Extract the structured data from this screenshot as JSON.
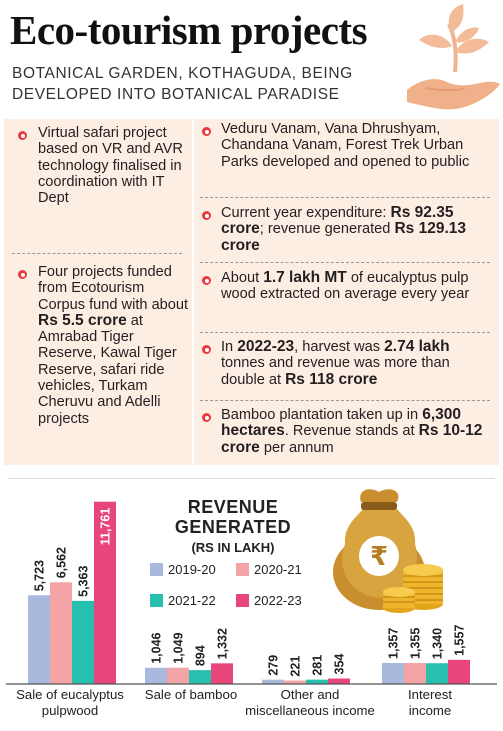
{
  "header": {
    "title": "Eco-tourism projects",
    "subtitle": "BOTANICAL GARDEN, KOTHAGUDA, BEING DEVELOPED INTO BOTANICAL PARADISE"
  },
  "left_points": [
    {
      "text": "Virtual safari project based on VR and AVR technology finalised in coordination with IT Dept"
    },
    {
      "pre": "Four projects funded from Ecotourism Corpus fund with about ",
      "b1": "Rs 5.5 crore",
      "post": " at Amrabad Tiger Reserve, Kawal Tiger Reserve, safari ride vehicles, Turkam Cheruvu and Adelli projects"
    }
  ],
  "right_points": [
    {
      "text": "Veduru Vanam, Vana Dhrushyam, Chandana Vanam, Forest Trek Urban Parks developed and opened to public"
    },
    {
      "pre": "Current year expenditure: ",
      "b1": "Rs 92.35 crore",
      "mid": "; revenue generated ",
      "b2": "Rs 129.13 crore"
    },
    {
      "pre": "About ",
      "b1": "1.7 lakh MT",
      "mid": " of eucalyptus pulp wood extracted on average every year"
    },
    {
      "pre": "In ",
      "b1": "2022-23",
      "mid": ", harvest was ",
      "b2": "2.74 lakh",
      "mid2": " tonnes and revenue was more than double at ",
      "b3": "Rs 118 crore"
    },
    {
      "pre": "Bamboo plantation taken up in ",
      "b1": "6,300 hectares",
      "mid": ". Revenue stands at ",
      "b2": "Rs 10-12 crore",
      "post": " per annum"
    }
  ],
  "chart_data": {
    "type": "bar",
    "title": "REVENUE GENERATED",
    "unit": "(RS IN LAKH)",
    "categories": [
      "Sale of eucalyptus pulpwood",
      "Sale of bamboo",
      "Other and miscellaneous income",
      "Interest income"
    ],
    "series": [
      {
        "name": "2019-20",
        "color": "#a9b9de",
        "values": [
          5723,
          1046,
          279,
          1357
        ]
      },
      {
        "name": "2020-21",
        "color": "#f4a3a6",
        "values": [
          6562,
          1049,
          221,
          1355
        ]
      },
      {
        "name": "2021-22",
        "color": "#27bfad",
        "values": [
          5363,
          894,
          281,
          1340
        ]
      },
      {
        "name": "2022-23",
        "color": "#e8457a",
        "values": [
          11761,
          1332,
          354,
          1557
        ]
      }
    ],
    "labels": [
      [
        "5,723",
        "6,562",
        "5,363",
        "11,761"
      ],
      [
        "1,046",
        "1,049",
        "894",
        "1,332"
      ],
      [
        "279",
        "221",
        "281",
        "354"
      ],
      [
        "1,357",
        "1,355",
        "1,340",
        "1,557"
      ]
    ],
    "category_labels": [
      [
        "Sale of eucalyptus",
        "pulpwood"
      ],
      [
        "Sale of bamboo"
      ],
      [
        "Other and",
        "miscellaneous income"
      ],
      [
        "Interest",
        "income"
      ]
    ],
    "ylim": [
      0,
      12000
    ],
    "grid": false,
    "legend": "top-center"
  },
  "icons": [
    "sapling-in-hand-icon",
    "money-bag-rupee-icon",
    "coin-stack-icon"
  ]
}
